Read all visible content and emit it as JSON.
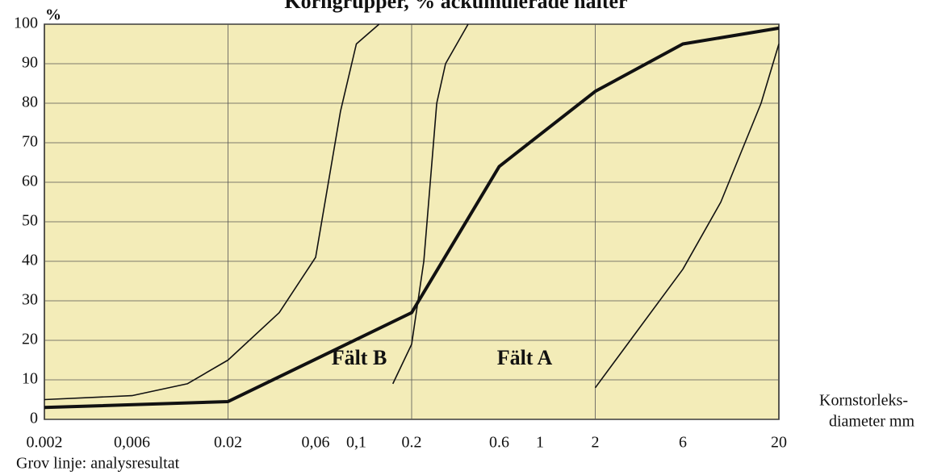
{
  "chart_data": {
    "type": "line",
    "title": "Korngrupper, % ackumulerade halter",
    "y_unit": "%",
    "xlabel": [
      "Kornstorleks-",
      "diameter mm"
    ],
    "note": "Grov linje: analysresultat",
    "annotations": [
      "Fält B",
      "Fält A"
    ],
    "xscale": "log",
    "xlim": [
      0.002,
      20
    ],
    "ylim": [
      0,
      100
    ],
    "xticks": [
      0.002,
      {
        "value": 0.006,
        "label": "0,006"
      },
      0.02,
      {
        "value": 0.06,
        "label": "0,06"
      },
      {
        "value": 0.1,
        "label": "0,1"
      },
      0.2,
      0.6,
      1,
      2,
      6,
      20
    ],
    "yticks": [
      0,
      10,
      20,
      30,
      40,
      50,
      60,
      70,
      80,
      90,
      100
    ],
    "xgrid": [
      0.02,
      0.2,
      2
    ],
    "grid": true,
    "background": "#f3ecb8",
    "series": [
      {
        "color": "#111111",
        "line_width": 4,
        "x": [
          0.002,
          0.02,
          0.2,
          0.6,
          2,
          6,
          20
        ],
        "values": [
          3,
          4.5,
          27,
          64,
          83,
          95,
          99
        ]
      },
      {
        "color": "#111111",
        "line_width": 1.6,
        "x": [
          0.002,
          0.006,
          0.012,
          0.02,
          0.038,
          0.06,
          0.082,
          0.1,
          0.133
        ],
        "values": [
          5,
          6,
          9,
          15,
          27,
          41,
          78,
          95,
          100
        ]
      },
      {
        "color": "#111111",
        "line_width": 1.6,
        "x": [
          0.158,
          0.2,
          0.233,
          0.274,
          0.306,
          0.406
        ],
        "values": [
          9,
          19,
          40,
          80,
          90,
          100
        ]
      },
      {
        "color": "#111111",
        "line_width": 1.6,
        "x": [
          2,
          6,
          9.66,
          16,
          20
        ],
        "values": [
          8,
          38,
          55,
          80,
          95
        ]
      }
    ]
  }
}
